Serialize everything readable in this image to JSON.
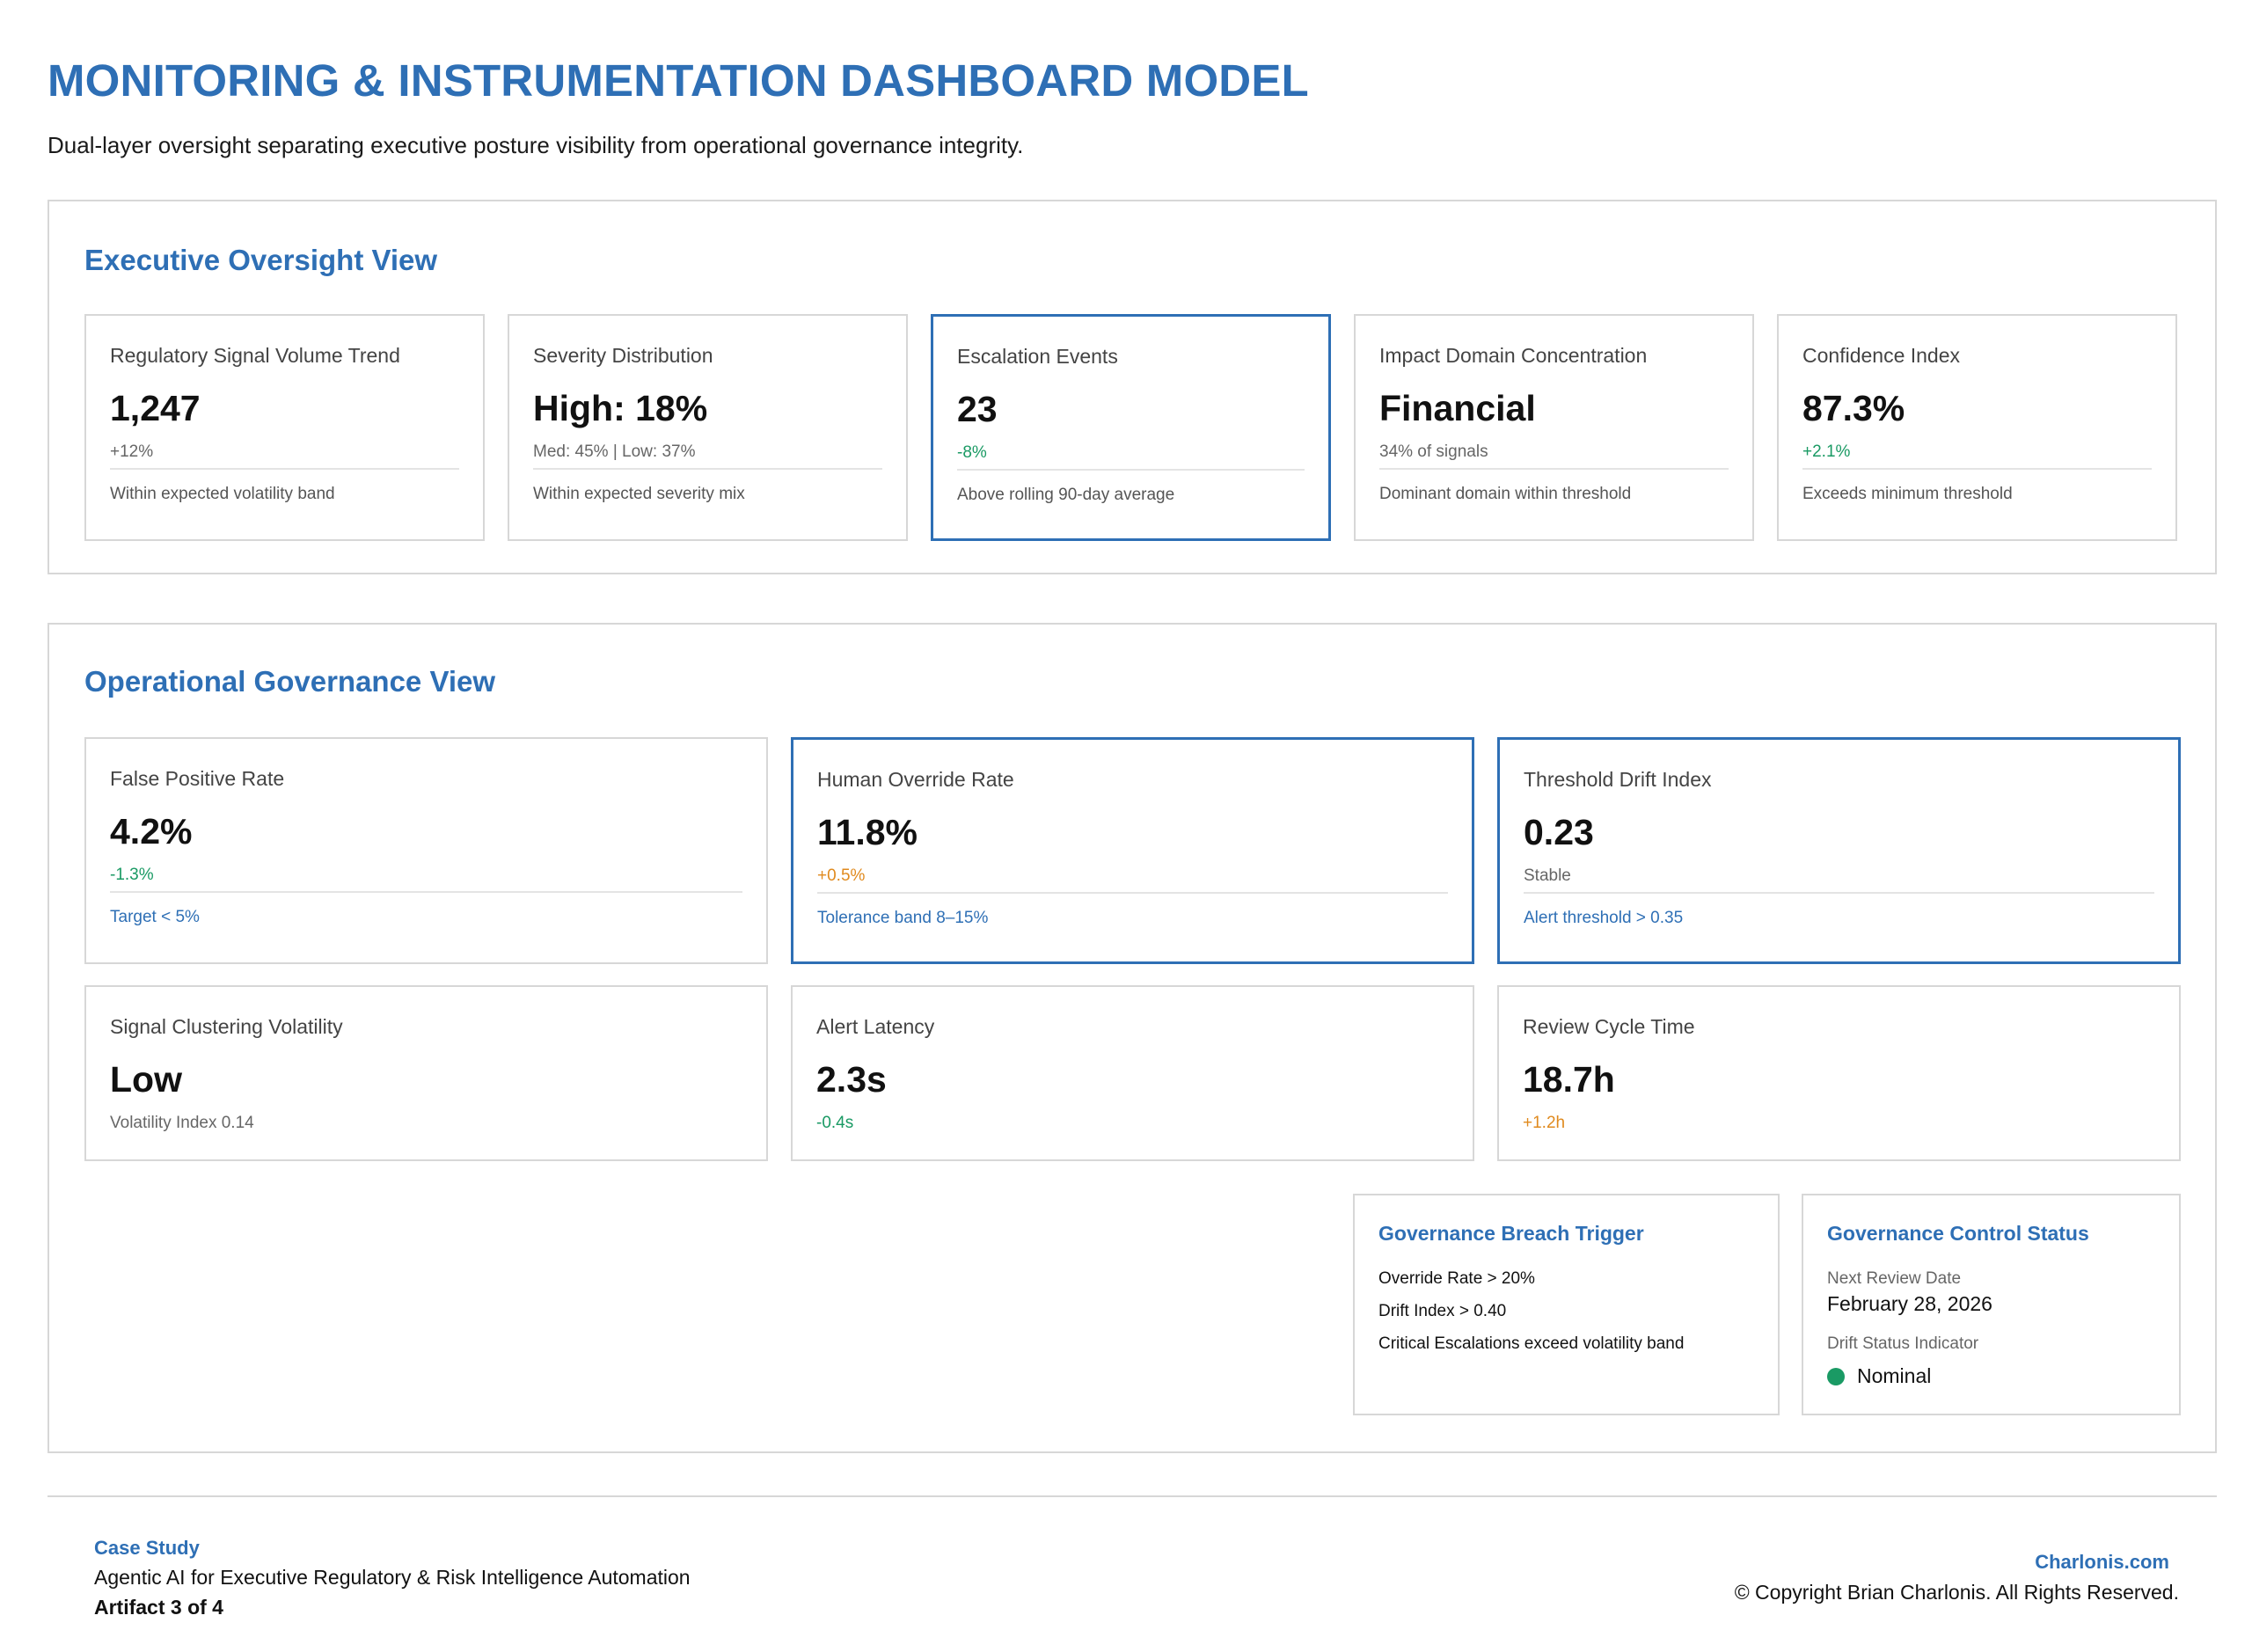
{
  "header": {
    "title": "MONITORING & INSTRUMENTATION DASHBOARD MODEL",
    "subtitle": "Dual-layer oversight separating executive posture visibility from operational governance integrity."
  },
  "executive_view": {
    "title": "Executive Oversight View",
    "cards": [
      {
        "label": "Regulatory Signal Volume Trend",
        "value": "1,247",
        "delta": "+12%",
        "note": "Within expected volatility band"
      },
      {
        "label": "Severity Distribution",
        "value": "High: 18%",
        "delta": "Med: 45% | Low: 37%",
        "note": "Within expected severity mix"
      },
      {
        "label": "Escalation Events",
        "value": "23",
        "delta": "-8%",
        "note": "Above rolling 90-day average"
      },
      {
        "label": "Impact Domain Concentration",
        "value": "Financial",
        "delta": "34% of signals",
        "note": "Dominant domain within threshold"
      },
      {
        "label": "Confidence Index",
        "value": "87.3%",
        "delta": "+2.1%",
        "note": "Exceeds minimum threshold"
      }
    ]
  },
  "operational_view": {
    "title": "Operational Governance View",
    "cards": [
      {
        "label": "False Positive Rate",
        "value": "4.2%",
        "delta": "-1.3%",
        "note": "Target < 5%"
      },
      {
        "label": "Human Override Rate",
        "value": "11.8%",
        "delta": "+0.5%",
        "note": "Tolerance band 8–15%"
      },
      {
        "label": "Threshold Drift Index",
        "value": "0.23",
        "delta": "Stable",
        "note": "Alert threshold > 0.35"
      },
      {
        "label": "Signal Clustering Volatility",
        "value": "Low",
        "delta": "Volatility Index 0.14"
      },
      {
        "label": "Alert Latency",
        "value": "2.3s",
        "delta": "-0.4s"
      },
      {
        "label": "Review Cycle Time",
        "value": "18.7h",
        "delta": "+1.2h"
      }
    ],
    "breach_trigger": {
      "title": "Governance Breach Trigger",
      "conditions": [
        "Override Rate > 20%",
        "Drift Index > 0.40",
        "Critical Escalations exceed volatility band"
      ]
    },
    "control_status": {
      "title": "Governance Control Status",
      "review_label": "Next Review Date",
      "review_date": "February 28, 2026",
      "drift_label": "Drift Status Indicator",
      "drift_status": "Nominal"
    }
  },
  "footer": {
    "case_study_label": "Case Study",
    "case_study_title": "Agentic AI for Executive Regulatory & Risk Intelligence Automation",
    "artifact": "Artifact 3 of 4",
    "site": "Charlonis.com",
    "copyright": "© Copyright Brian Charlonis. All Rights Reserved."
  },
  "colors": {
    "accent": "#2e6fb5",
    "positive": "#1a9a64",
    "warning": "#e08a1e",
    "border": "#d7d7d7"
  },
  "icons": [
    "status-dot-icon"
  ]
}
